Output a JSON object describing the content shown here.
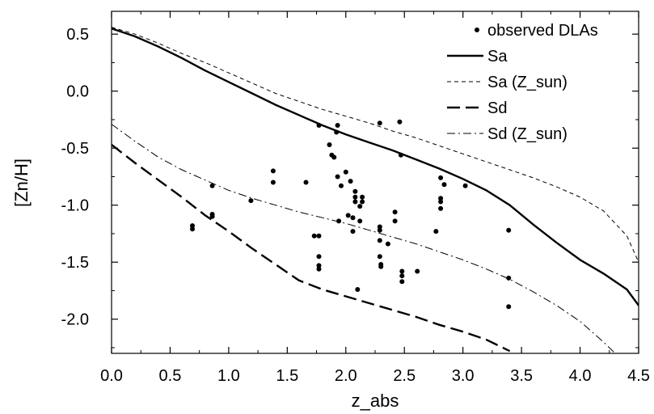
{
  "chart_data": {
    "type": "scatter",
    "title": "",
    "xlabel": "z_abs",
    "ylabel": "[Zn/H]",
    "xlim": [
      0.0,
      4.5
    ],
    "ylim": [
      -2.3,
      0.7
    ],
    "xticks": [
      0.0,
      0.5,
      1.0,
      1.5,
      2.0,
      2.5,
      3.0,
      3.5,
      4.0,
      4.5
    ],
    "xtick_labels": [
      "0.0",
      "0.5",
      "1.0",
      "1.5",
      "2.0",
      "2.5",
      "3.0",
      "3.5",
      "4.0",
      "4.5"
    ],
    "yticks": [
      0.5,
      0.0,
      -0.5,
      -1.0,
      -1.5,
      -2.0
    ],
    "ytick_labels": [
      "0.5",
      "0.0",
      "-0.5",
      "-1.0",
      "-1.5",
      "-2.0"
    ],
    "grid": false,
    "legend_position": "top-right",
    "legend": [
      {
        "label": "observed DLAs",
        "style": "dots"
      },
      {
        "label": "Sa",
        "style": "solid-thick"
      },
      {
        "label": "Sa (Z_sun)",
        "style": "short-dash-thin"
      },
      {
        "label": "Sd",
        "style": "long-dash-thick"
      },
      {
        "label": "Sd (Z_sun)",
        "style": "dash-dot-thin"
      }
    ],
    "scatter": {
      "name": "observed DLAs",
      "points": [
        [
          0.69,
          -1.18
        ],
        [
          0.69,
          -1.21
        ],
        [
          0.86,
          -0.83
        ],
        [
          0.86,
          -1.08
        ],
        [
          0.86,
          -1.1
        ],
        [
          1.19,
          -0.96
        ],
        [
          1.38,
          -0.7
        ],
        [
          1.38,
          -0.8
        ],
        [
          1.66,
          -0.8
        ],
        [
          1.73,
          -1.27
        ],
        [
          1.77,
          -0.3
        ],
        [
          1.77,
          -1.27
        ],
        [
          1.77,
          -1.45
        ],
        [
          1.77,
          -1.53
        ],
        [
          1.77,
          -1.56
        ],
        [
          1.86,
          -0.47
        ],
        [
          1.88,
          -0.56
        ],
        [
          1.9,
          -0.58
        ],
        [
          1.92,
          -0.36
        ],
        [
          1.93,
          -0.3
        ],
        [
          1.93,
          -0.75
        ],
        [
          1.94,
          -1.14
        ],
        [
          1.96,
          -0.83
        ],
        [
          2.0,
          -0.71
        ],
        [
          2.02,
          -1.09
        ],
        [
          2.04,
          -0.79
        ],
        [
          2.06,
          -1.23
        ],
        [
          2.06,
          -1.11
        ],
        [
          2.08,
          -0.88
        ],
        [
          2.08,
          -0.93
        ],
        [
          2.08,
          -0.97
        ],
        [
          2.1,
          -1.74
        ],
        [
          2.12,
          -1.14
        ],
        [
          2.12,
          -1.01
        ],
        [
          2.14,
          -0.93
        ],
        [
          2.14,
          -0.97
        ],
        [
          2.29,
          -0.28
        ],
        [
          2.29,
          -1.19
        ],
        [
          2.29,
          -1.22
        ],
        [
          2.29,
          -1.31
        ],
        [
          2.29,
          -1.45
        ],
        [
          2.3,
          -1.52
        ],
        [
          2.3,
          -1.54
        ],
        [
          2.36,
          -1.34
        ],
        [
          2.42,
          -1.06
        ],
        [
          2.42,
          -1.14
        ],
        [
          2.46,
          -0.27
        ],
        [
          2.47,
          -0.56
        ],
        [
          2.48,
          -1.58
        ],
        [
          2.48,
          -1.62
        ],
        [
          2.48,
          -1.67
        ],
        [
          2.61,
          -1.58
        ],
        [
          2.77,
          -1.23
        ],
        [
          2.81,
          -0.76
        ],
        [
          2.81,
          -0.94
        ],
        [
          2.81,
          -0.97
        ],
        [
          2.81,
          -1.03
        ],
        [
          2.84,
          -0.82
        ],
        [
          3.02,
          -0.83
        ],
        [
          3.39,
          -1.22
        ],
        [
          3.39,
          -1.64
        ],
        [
          3.39,
          -1.89
        ]
      ]
    },
    "series": [
      {
        "name": "Sa",
        "style": "solid-thick",
        "x": [
          0.0,
          0.2,
          0.4,
          0.6,
          0.8,
          1.0,
          1.2,
          1.4,
          1.6,
          1.8,
          2.0,
          2.2,
          2.4,
          2.6,
          2.8,
          3.0,
          3.2,
          3.4,
          3.6,
          3.8,
          4.0,
          4.2,
          4.4,
          4.5
        ],
        "y": [
          0.55,
          0.48,
          0.39,
          0.29,
          0.18,
          0.08,
          -0.02,
          -0.12,
          -0.21,
          -0.3,
          -0.38,
          -0.45,
          -0.52,
          -0.6,
          -0.68,
          -0.77,
          -0.87,
          -1.0,
          -1.17,
          -1.33,
          -1.48,
          -1.6,
          -1.74,
          -1.88
        ]
      },
      {
        "name": "Sa (Z_sun)",
        "style": "short-dash-thin",
        "x": [
          0.0,
          0.2,
          0.4,
          0.6,
          0.8,
          1.0,
          1.2,
          1.4,
          1.6,
          1.8,
          2.0,
          2.2,
          2.4,
          2.6,
          2.8,
          3.0,
          3.2,
          3.4,
          3.6,
          3.8,
          4.0,
          4.2,
          4.4,
          4.5
        ],
        "y": [
          0.56,
          0.5,
          0.42,
          0.33,
          0.25,
          0.16,
          0.07,
          -0.02,
          -0.09,
          -0.16,
          -0.22,
          -0.28,
          -0.35,
          -0.41,
          -0.48,
          -0.55,
          -0.62,
          -0.69,
          -0.76,
          -0.84,
          -0.93,
          -1.05,
          -1.27,
          -1.5
        ]
      },
      {
        "name": "Sd",
        "style": "long-dash-thick",
        "x": [
          0.0,
          0.2,
          0.4,
          0.6,
          0.8,
          1.0,
          1.2,
          1.4,
          1.6,
          1.8,
          2.0,
          2.2,
          2.4,
          2.6,
          2.8,
          3.0,
          3.2,
          3.4
        ],
        "y": [
          -0.47,
          -0.63,
          -0.78,
          -0.93,
          -1.09,
          -1.23,
          -1.38,
          -1.52,
          -1.66,
          -1.74,
          -1.8,
          -1.86,
          -1.92,
          -1.98,
          -2.05,
          -2.11,
          -2.18,
          -2.28
        ]
      },
      {
        "name": "Sd (Z_sun)",
        "style": "dash-dot-thin",
        "x": [
          0.0,
          0.2,
          0.4,
          0.6,
          0.8,
          1.0,
          1.2,
          1.4,
          1.6,
          1.8,
          2.0,
          2.2,
          2.4,
          2.6,
          2.8,
          3.0,
          3.2,
          3.4,
          3.6,
          3.8,
          4.0,
          4.2,
          4.3
        ],
        "y": [
          -0.29,
          -0.44,
          -0.58,
          -0.69,
          -0.78,
          -0.87,
          -0.94,
          -1.0,
          -1.06,
          -1.11,
          -1.16,
          -1.22,
          -1.28,
          -1.34,
          -1.41,
          -1.48,
          -1.56,
          -1.65,
          -1.76,
          -1.88,
          -2.02,
          -2.2,
          -2.3
        ]
      }
    ]
  }
}
